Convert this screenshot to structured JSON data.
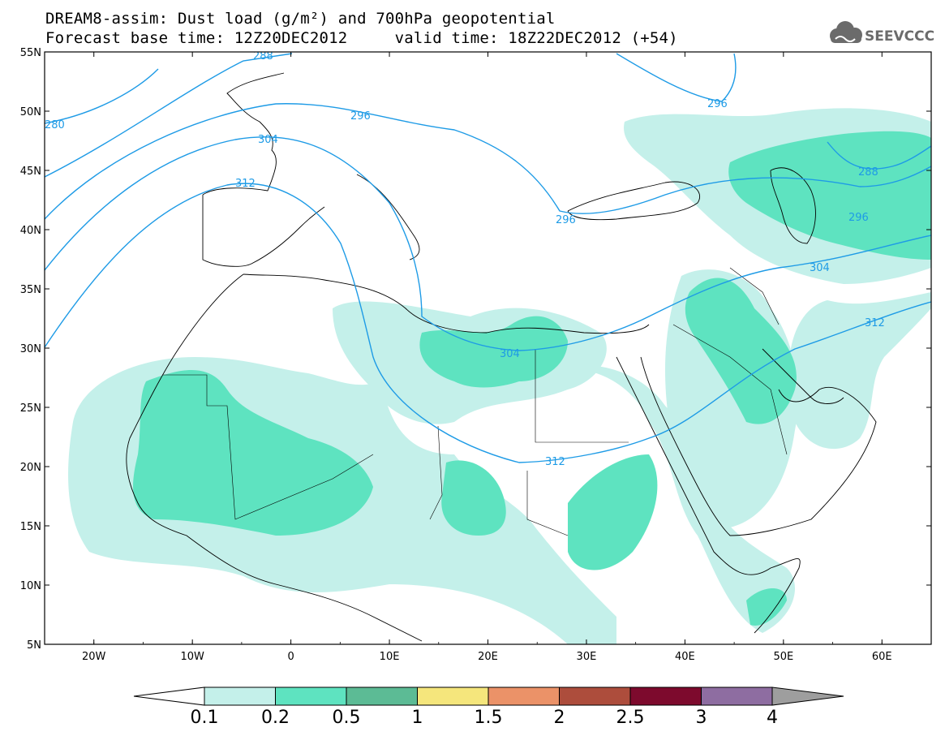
{
  "header": {
    "line1": "DREAM8-assim: Dust load (g/m²) and 700hPa geopotential",
    "line2": "Forecast base time: 12Z20DEC2012     valid time: 18Z22DEC2012 (+54)"
  },
  "logo": {
    "text": "SEEVCCC",
    "icon": "cloud-icon"
  },
  "map": {
    "lon_range": [
      -25,
      65
    ],
    "lat_range": [
      5,
      55
    ],
    "lat_labels": [
      "55N",
      "50N",
      "45N",
      "40N",
      "35N",
      "30N",
      "25N",
      "20N",
      "15N",
      "10N",
      "5N"
    ],
    "lon_labels": [
      "20W",
      "10W",
      "0",
      "10E",
      "20E",
      "30E",
      "40E",
      "50E",
      "60E"
    ],
    "contour_labels": [
      "288",
      "280",
      "296",
      "304",
      "312",
      "296",
      "288",
      "296",
      "304",
      "312",
      "296",
      "304",
      "312"
    ],
    "contour_color": "#1e9be6"
  },
  "colorbar": {
    "levels": [
      "0.1",
      "0.2",
      "0.5",
      "1",
      "1.5",
      "2",
      "2.5",
      "3",
      "4"
    ],
    "colors": [
      "#c4f0ea",
      "#5ee3c0",
      "#5cbb95",
      "#f5e67c",
      "#eb9268",
      "#ad4d3c",
      "#7d0a2d",
      "#8e6da1"
    ],
    "end_colors": [
      "#ffffff",
      "#9e9e9e"
    ]
  }
}
